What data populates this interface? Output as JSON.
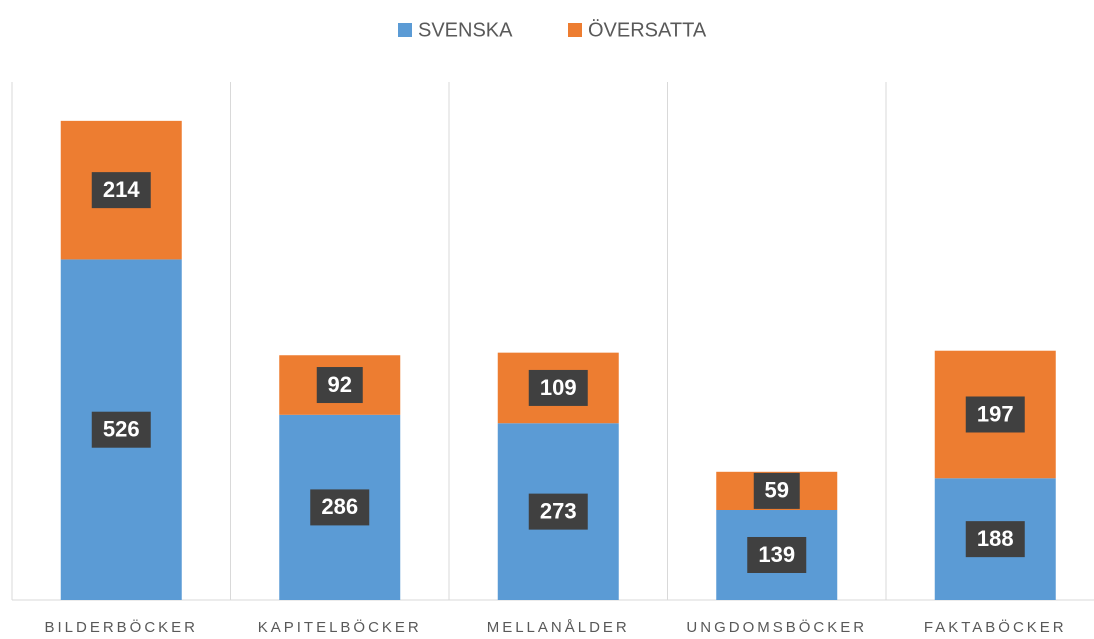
{
  "chart_data": {
    "type": "stacked_bar",
    "categories": [
      "BILDERBÖCKER",
      "KAPITELBÖCKER",
      "MELLANÅLDER",
      "UNGDOMSBÖCKER",
      "FAKTABÖCKER"
    ],
    "series": [
      {
        "name": "SVENSKA",
        "color": "#5b9bd5",
        "values": [
          526,
          286,
          273,
          139,
          188
        ]
      },
      {
        "name": "ÖVERSATTA",
        "color": "#ed7d31",
        "values": [
          214,
          92,
          109,
          59,
          197
        ]
      }
    ],
    "ylim": [
      0,
      800
    ],
    "legend": "top"
  }
}
